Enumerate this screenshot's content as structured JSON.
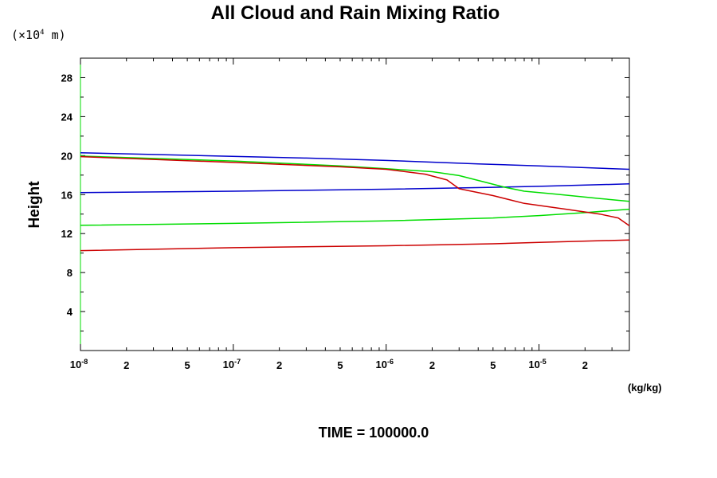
{
  "chart_data": {
    "type": "line",
    "title": "All Cloud and Rain Mixing Ratio",
    "ylabel": "Height",
    "yunit": "(×10",
    "yunit_exp": "4",
    "yunit_end": " m)",
    "xunit": "(kg/kg)",
    "xscale": "log",
    "xlim": [
      1e-08,
      3.9e-05
    ],
    "ylim": [
      0,
      30
    ],
    "x_ticklabels": [
      {
        "base": "10",
        "exp": "-8"
      },
      {
        "text": "2"
      },
      {
        "text": "5"
      },
      {
        "base": "10",
        "exp": "-7"
      },
      {
        "text": "2"
      },
      {
        "text": "5"
      },
      {
        "base": "10",
        "exp": "-6"
      },
      {
        "text": "2"
      },
      {
        "text": "5"
      },
      {
        "base": "10",
        "exp": "-5"
      },
      {
        "text": "2"
      }
    ],
    "x_tickvalues": [
      1e-08,
      2e-08,
      5e-08,
      1e-07,
      2e-07,
      5e-07,
      1e-06,
      2e-06,
      5e-06,
      1e-05,
      2e-05
    ],
    "y_ticks": [
      4,
      8,
      12,
      16,
      20,
      24,
      28
    ],
    "series": [
      {
        "color": "#0000cc",
        "x": [
          1e-08,
          3e-07,
          1e-06,
          4e-06,
          1e-05,
          3.9e-05
        ],
        "y": [
          20.3,
          19.75,
          19.5,
          19.15,
          18.95,
          18.6
        ]
      },
      {
        "color": "#0000cc",
        "x": [
          1e-08,
          1e-07,
          1e-06,
          5e-06,
          1e-05,
          3.9e-05
        ],
        "y": [
          16.2,
          16.35,
          16.55,
          16.75,
          16.85,
          17.1
        ]
      },
      {
        "color": "#00dd00",
        "x": [
          1e-08,
          1e-07,
          5e-07,
          1e-06,
          2e-06,
          3e-06,
          4.5e-06,
          6e-06,
          8e-06,
          1.3e-05,
          2.5e-05,
          3.9e-05
        ],
        "y": [
          19.95,
          19.45,
          18.95,
          18.65,
          18.35,
          17.95,
          17.25,
          16.75,
          16.35,
          16.05,
          15.6,
          15.3
        ]
      },
      {
        "color": "#00dd00",
        "x": [
          1e-08,
          1e-07,
          1e-06,
          5e-06,
          1e-05,
          2e-05,
          3.9e-05
        ],
        "y": [
          12.85,
          13.05,
          13.3,
          13.6,
          13.85,
          14.15,
          14.5
        ]
      },
      {
        "color": "#cc0000",
        "x": [
          1e-08,
          1e-07,
          5e-07,
          1e-06,
          1.8e-06,
          2.5e-06,
          3e-06,
          5e-06,
          8e-06,
          1.5e-05,
          2.5e-05,
          3.3e-05,
          3.9e-05
        ],
        "y": [
          19.9,
          19.3,
          18.85,
          18.6,
          18.1,
          17.5,
          16.6,
          15.9,
          15.1,
          14.5,
          14.0,
          13.6,
          12.8
        ]
      },
      {
        "color": "#cc0000",
        "x": [
          1e-08,
          1e-07,
          1e-06,
          5e-06,
          1e-05,
          3.9e-05
        ],
        "y": [
          10.25,
          10.55,
          10.75,
          10.95,
          11.1,
          11.35
        ]
      }
    ]
  },
  "footer": "TIME = 100000.0"
}
